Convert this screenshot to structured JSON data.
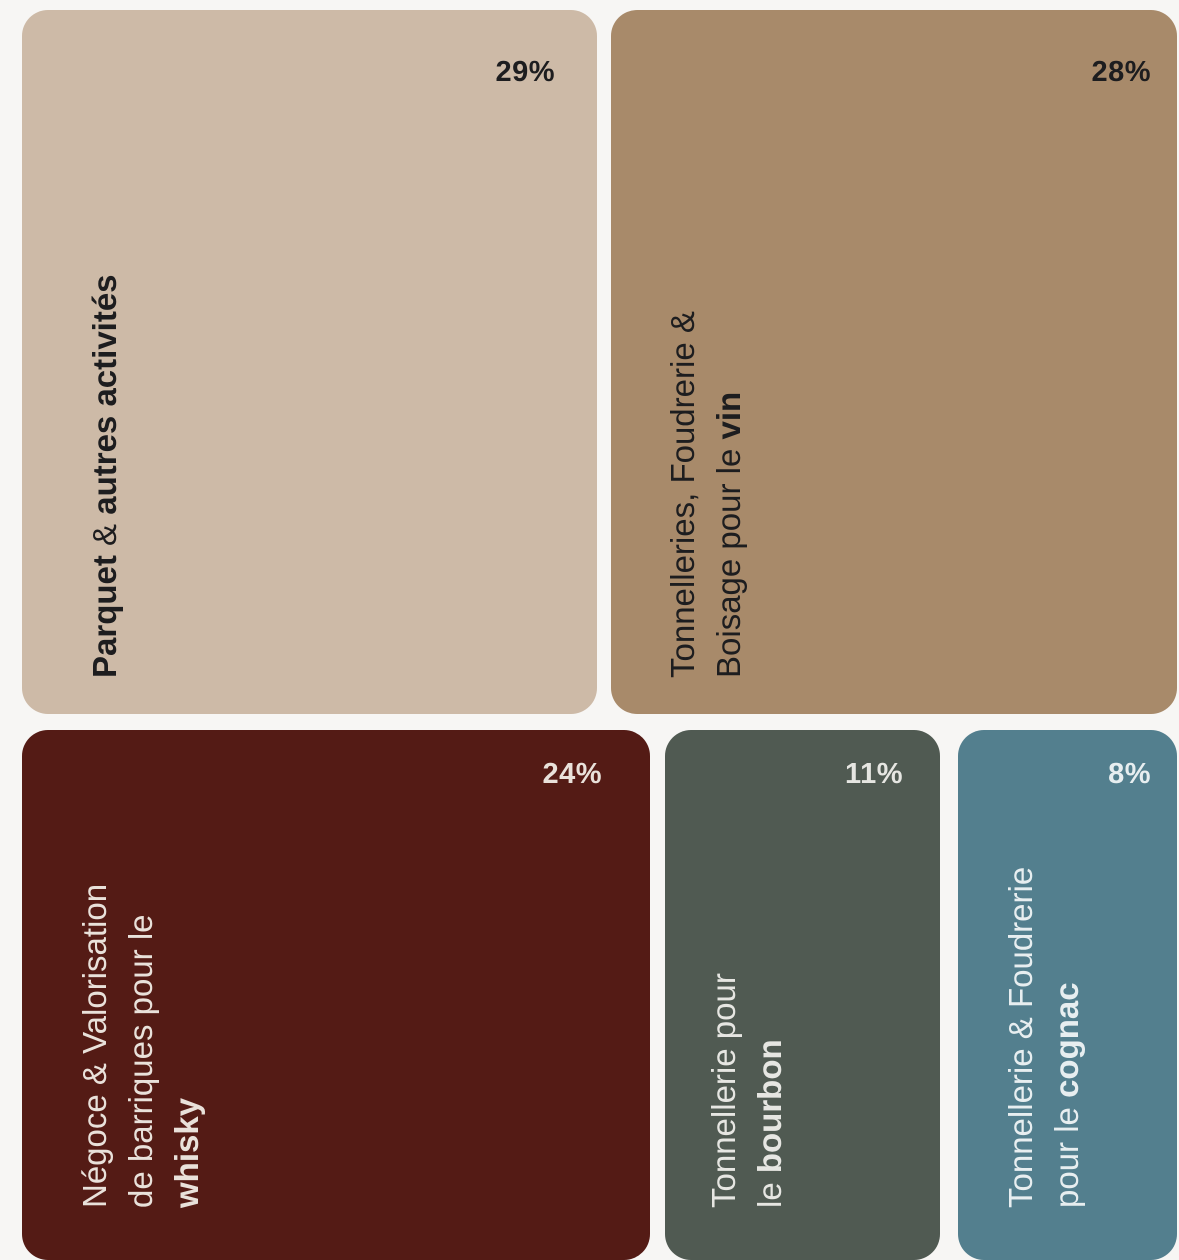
{
  "chart_data": {
    "type": "treemap",
    "title": "",
    "unit": "%",
    "items": [
      {
        "key": "parquet",
        "label_parts": [
          {
            "text": "Parquet",
            "bold": true
          },
          {
            "text": " & ",
            "bold": false
          },
          {
            "text": "autres activités",
            "bold": true
          }
        ],
        "value": 29,
        "value_label": "29%",
        "color": "#cdbaa7",
        "text_color": "#1d1d1f"
      },
      {
        "key": "vin",
        "label_parts": [
          {
            "text": "Tonnelleries, Foudrerie &",
            "bold": false,
            "break": true
          },
          {
            "text": "Boisage pour le ",
            "bold": false
          },
          {
            "text": "vin",
            "bold": true
          }
        ],
        "value": 28,
        "value_label": "28%",
        "color": "#a88a6a",
        "text_color": "#1d1d1f"
      },
      {
        "key": "whisky",
        "label_parts": [
          {
            "text": "Négoce & Valorisation",
            "bold": false,
            "break": true
          },
          {
            "text": "de barriques pour le",
            "bold": false,
            "break": true
          },
          {
            "text": "whisky",
            "bold": true
          }
        ],
        "value": 24,
        "value_label": "24%",
        "color": "#541b15",
        "text_color": "#e9e1da"
      },
      {
        "key": "bourbon",
        "label_parts": [
          {
            "text": "Tonnellerie pour",
            "bold": false,
            "break": true
          },
          {
            "text": "le ",
            "bold": false
          },
          {
            "text": "bourbon",
            "bold": true
          }
        ],
        "value": 11,
        "value_label": "11%",
        "color": "#505a52",
        "text_color": "#e6e6e2"
      },
      {
        "key": "cognac",
        "label_parts": [
          {
            "text": "Tonnellerie & Foudrerie",
            "bold": false,
            "break": true
          },
          {
            "text": "pour le ",
            "bold": false
          },
          {
            "text": "cognac",
            "bold": true
          }
        ],
        "value": 8,
        "value_label": "8%",
        "color": "#537f8e",
        "text_color": "#e7eef0"
      }
    ]
  }
}
